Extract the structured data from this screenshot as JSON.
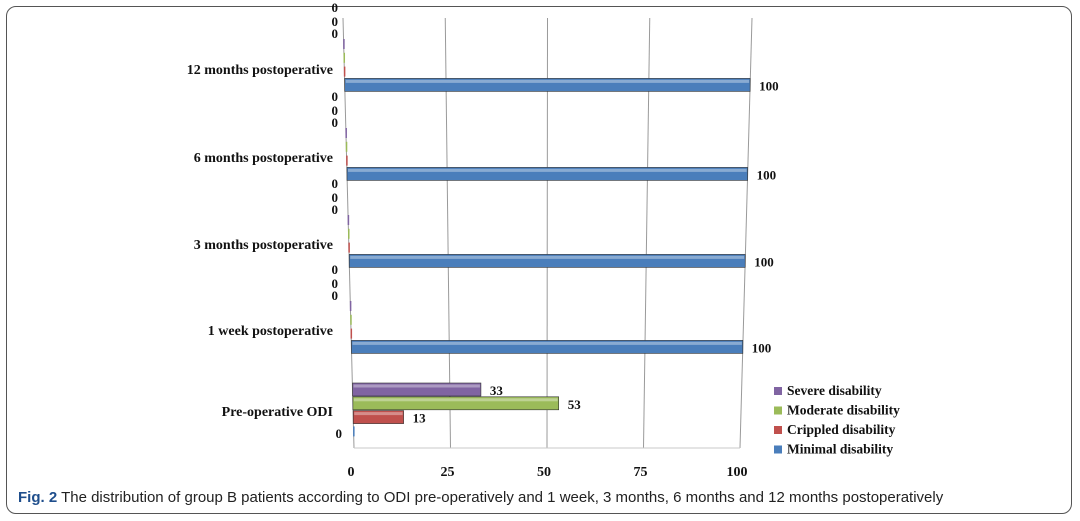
{
  "caption": {
    "label": "Fig. 2",
    "text": "The distribution of group B patients according to ODI pre-operatively and 1 week, 3 months, 6 months and 12 months postoperatively"
  },
  "chart_data": {
    "type": "bar",
    "orientation": "horizontal",
    "categories": [
      "Pre-operative ODI",
      "1 week postoperative",
      "3 months postoperative",
      "6 months postoperative",
      "12 months postoperative"
    ],
    "series": [
      {
        "name": "Minimal disability",
        "color": "#4a7ebb",
        "values": [
          0,
          100,
          100,
          100,
          100
        ]
      },
      {
        "name": "Crippled disability",
        "color": "#c0504d",
        "values": [
          13,
          0,
          0,
          0,
          0
        ]
      },
      {
        "name": "Moderate disability",
        "color": "#9bbb59",
        "values": [
          53,
          0,
          0,
          0,
          0
        ]
      },
      {
        "name": "Severe disability",
        "color": "#8064a2",
        "values": [
          33,
          0,
          0,
          0,
          0
        ]
      }
    ],
    "legend_order": [
      "Severe disability",
      "Moderate disability",
      "Crippled disability",
      "Minimal disability"
    ],
    "xticks": [
      "0",
      "25",
      "50",
      "75",
      "100"
    ],
    "xlim": [
      0,
      100
    ],
    "grid": true,
    "legend_position": "right"
  }
}
